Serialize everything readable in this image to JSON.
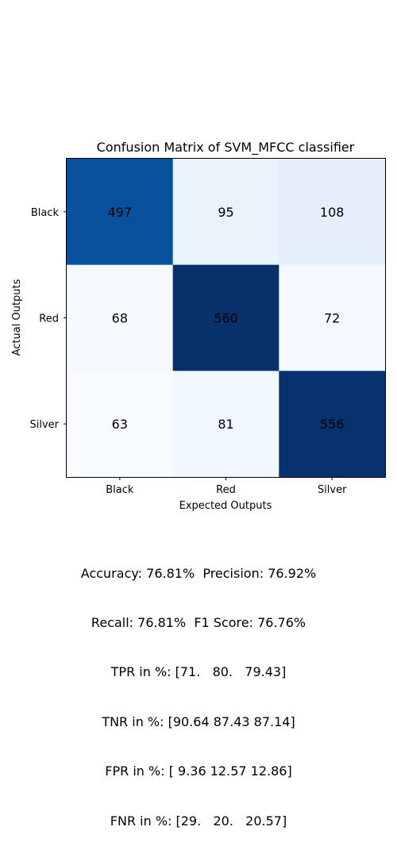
{
  "chart_data": {
    "type": "heatmap",
    "title": "Confusion Matrix of SVM_MFCC classifier",
    "xlabel": "Expected Outputs",
    "ylabel": "Actual Outputs",
    "x_categories": [
      "Black",
      "Red",
      "Silver"
    ],
    "y_categories": [
      "Black",
      "Red",
      "Silver"
    ],
    "values": [
      [
        497,
        95,
        108
      ],
      [
        68,
        560,
        72
      ],
      [
        63,
        81,
        556
      ]
    ],
    "colormap": "Blues",
    "value_range": [
      63,
      560
    ],
    "grid": false
  },
  "stats": {
    "line1": "Accuracy: 76.81%  Precision: 76.92%",
    "line2": "Recall: 76.81%  F1 Score: 76.76%",
    "line3": "TPR in %: [71.   80.   79.43]",
    "line4": "TNR in %: [90.64 87.43 87.14]",
    "line5": "FPR in %: [ 9.36 12.57 12.86]",
    "line6": "FNR in %: [29.   20.   20.57]"
  }
}
